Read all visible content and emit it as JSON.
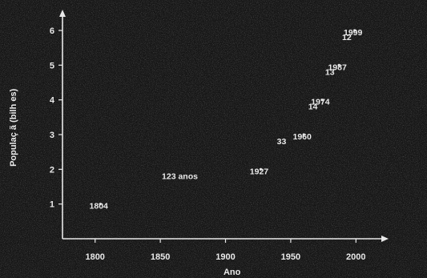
{
  "chart_data": {
    "type": "scatter",
    "title": "",
    "xlabel": "Ano",
    "ylabel": "Populaç  ã (bilh  es)",
    "xlim": [
      1775,
      2025
    ],
    "ylim": [
      0,
      6.6
    ],
    "x_ticks": [
      1800,
      1850,
      1900,
      1950,
      2000
    ],
    "y_ticks": [
      1,
      2,
      3,
      4,
      5,
      6
    ],
    "grid": false,
    "series": [
      {
        "values": [
          {
            "x": 1804,
            "y": 1
          },
          {
            "x": 1927,
            "y": 2
          },
          {
            "x": 1960,
            "y": 3
          },
          {
            "x": 1974,
            "y": 4
          },
          {
            "x": 1987,
            "y": 5
          },
          {
            "x": 1999,
            "y": 6
          }
        ]
      }
    ],
    "data_labels": [
      {
        "text": "1804",
        "x": 1804,
        "y": 1
      },
      {
        "text": "1927",
        "x": 1927,
        "y": 2
      },
      {
        "text": "1960",
        "x": 1960,
        "y": 3
      },
      {
        "text": "1974",
        "x": 1974,
        "y": 4
      },
      {
        "text": "1987",
        "x": 1987,
        "y": 5
      },
      {
        "text": "1999",
        "x": 1999,
        "y": 6
      }
    ],
    "annotations": [
      {
        "text": "123 anos",
        "x": 1865,
        "y": 2
      },
      {
        "text": "33",
        "x": 1943,
        "y": 3
      },
      {
        "text": "14",
        "x": 1967,
        "y": 4
      },
      {
        "text": "13",
        "x": 1980,
        "y": 5
      },
      {
        "text": "12",
        "x": 1993,
        "y": 6
      }
    ]
  }
}
